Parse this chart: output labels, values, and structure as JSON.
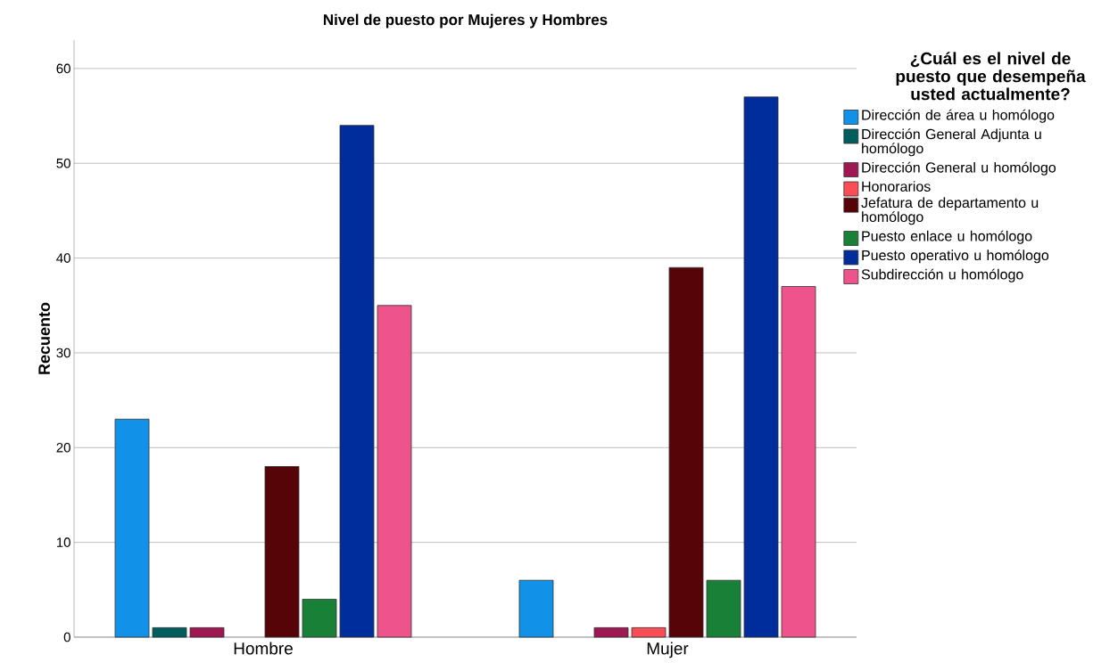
{
  "chart_data": {
    "type": "bar",
    "title": "Nivel de puesto por Mujeres y Hombres",
    "ylabel": "Recuento",
    "legend_title": "¿Cuál es el nivel de puesto que desempeña usted actualmente?",
    "categories": [
      "Hombre",
      "Mujer"
    ],
    "series": [
      {
        "name": "Dirección de área u homólogo",
        "color": "#1192e8",
        "values": [
          23,
          6
        ]
      },
      {
        "name": "Dirección General Adjunta u homólogo",
        "color": "#005d5d",
        "values": [
          1,
          null
        ]
      },
      {
        "name": "Dirección General u homólogo",
        "color": "#9f1853",
        "values": [
          1,
          1
        ]
      },
      {
        "name": "Honorarios",
        "color": "#fa4d56",
        "values": [
          null,
          1
        ]
      },
      {
        "name": "Jefatura de departamento u homólogo",
        "color": "#570408",
        "values": [
          18,
          39
        ]
      },
      {
        "name": "Puesto enlace u homólogo",
        "color": "#198038",
        "values": [
          4,
          6
        ]
      },
      {
        "name": "Puesto operativo u homólogo",
        "color": "#002d9c",
        "values": [
          54,
          57
        ]
      },
      {
        "name": "Subdirección u homólogo",
        "color": "#ee538b",
        "values": [
          35,
          37
        ]
      }
    ],
    "ylim": [
      0,
      63
    ],
    "yticks": [
      0,
      10,
      20,
      30,
      40,
      50,
      60
    ],
    "grid": "y",
    "legend": "right"
  }
}
